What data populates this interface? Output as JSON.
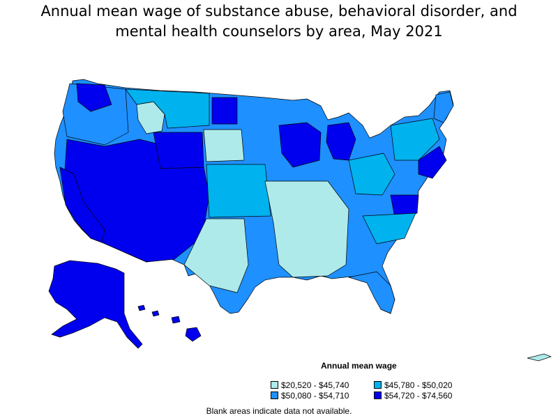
{
  "title_lines": [
    "Annual mean wage of substance abuse, behavioral disorder, and",
    "mental health counselors by area, May 2021"
  ],
  "legend": {
    "title": "Annual mean wage",
    "items": [
      {
        "label": "$20,520 - $45,740",
        "color": "#aeeaea"
      },
      {
        "label": "$45,780 - $50,020",
        "color": "#00b2ee"
      },
      {
        "label": "$50,080 - $54,710",
        "color": "#1e90ff"
      },
      {
        "label": "$54,720 - $74,560",
        "color": "#0000ee"
      }
    ]
  },
  "note": "Blank areas indicate data not available.",
  "map_colors": {
    "low": "#aeeaea",
    "mid_low": "#00b2ee",
    "mid_high": "#1e90ff",
    "high": "#0000ee",
    "border": "#000000"
  }
}
